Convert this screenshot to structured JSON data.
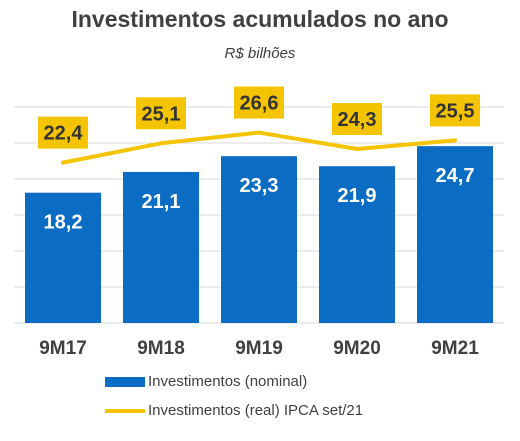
{
  "chart_data": {
    "type": "bar",
    "title": "Investimentos acumulados no ano",
    "subtitle": "R$ bilhões",
    "categories": [
      "9M17",
      "9M18",
      "9M19",
      "9M20",
      "9M21"
    ],
    "ylim": [
      0,
      32
    ],
    "grid": true,
    "series": [
      {
        "name": "Investimentos (nominal)",
        "type": "bar",
        "values": [
          18.2,
          21.1,
          23.3,
          21.9,
          24.7
        ],
        "labels": [
          "18,2",
          "21,1",
          "23,3",
          "21,9",
          "24,7"
        ],
        "color": "#0b6cc4"
      },
      {
        "name": "Investimentos (real) IPCA set/21",
        "type": "line",
        "values": [
          22.4,
          25.1,
          26.6,
          24.3,
          25.5
        ],
        "labels": [
          "22,4",
          "25,1",
          "26,6",
          "24,3",
          "25,5"
        ],
        "color": "#f5c400"
      }
    ],
    "legend_position": "bottom"
  },
  "colors": {
    "bar": "#0b6cc4",
    "line": "#f5c400",
    "label_box": "#f5c400",
    "grid": "#d9d9d9",
    "text": "#404040"
  }
}
